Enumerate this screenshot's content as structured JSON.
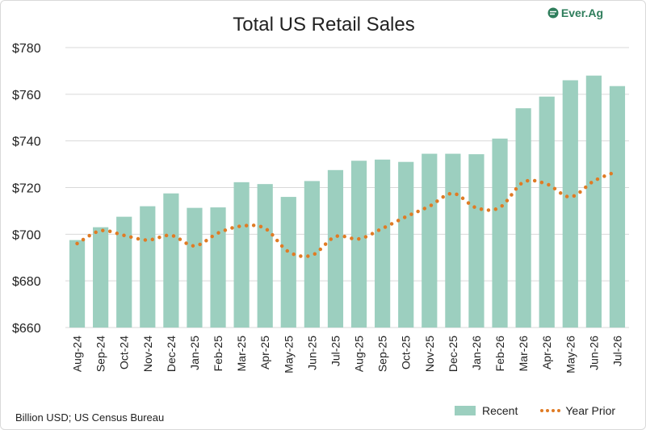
{
  "logo_text": "Ever.Ag",
  "footnote": "Billion USD; US Census Bureau",
  "colors": {
    "bars": "#9ccfbf",
    "line": "#e07b24",
    "grid": "#d9d9d9"
  },
  "chart_data": {
    "type": "bar",
    "title": "Total US Retail Sales",
    "ylim": [
      660,
      780
    ],
    "yticks": [
      660,
      680,
      700,
      720,
      740,
      760,
      780
    ],
    "ytick_labels": [
      "$660",
      "$680",
      "$700",
      "$720",
      "$740",
      "$760",
      "$780"
    ],
    "grid": true,
    "legend_position": "bottom-right",
    "categories": [
      "Aug-24",
      "Sep-24",
      "Oct-24",
      "Nov-24",
      "Dec-24",
      "Jan-25",
      "Feb-25",
      "Mar-25",
      "Apr-25",
      "May-25",
      "Jun-25",
      "Jul-25",
      "Aug-25",
      "Sep-25",
      "Oct-25",
      "Nov-25",
      "Dec-25",
      "Jan-26",
      "Feb-26",
      "Mar-26",
      "Apr-26",
      "May-26",
      "Jun-26",
      "Jul-26"
    ],
    "series": [
      {
        "name": "Recent",
        "type": "bar",
        "values": [
          697.5,
          703.0,
          707.5,
          712.0,
          717.5,
          711.3,
          711.5,
          722.3,
          721.5,
          716.0,
          722.8,
          727.5,
          731.5,
          732.0,
          731.0,
          734.5,
          734.5,
          734.3,
          741.0,
          754.0,
          759.0,
          766.0,
          768.0,
          763.5
        ]
      },
      {
        "name": "Year Prior",
        "type": "line",
        "style": "dotted",
        "values": [
          696.0,
          701.5,
          699.5,
          697.5,
          699.5,
          695.0,
          700.5,
          703.5,
          702.5,
          692.5,
          691.0,
          699.0,
          698.0,
          702.5,
          707.5,
          712.0,
          717.5,
          711.3,
          711.5,
          722.3,
          721.5,
          716.0,
          722.8,
          727.0
        ]
      }
    ]
  }
}
